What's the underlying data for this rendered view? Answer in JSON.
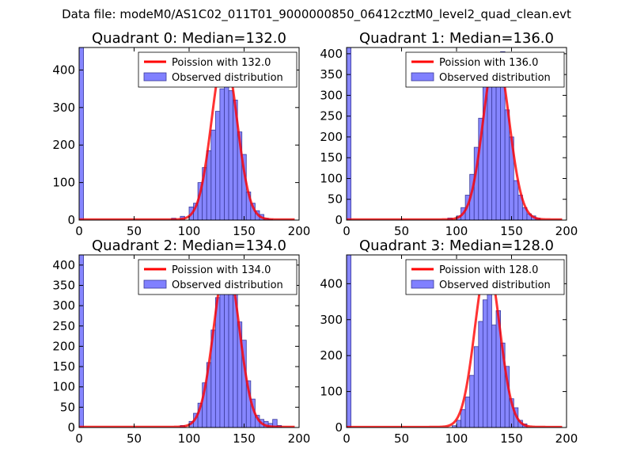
{
  "figure": {
    "suptitle": "Data file: modeM0/AS1C02_011T01_9000000850_06412cztM0_level2_quad_clean.evt"
  },
  "colors": {
    "hist_fill": "#8080ff",
    "hist_edge": "#3a3a9a",
    "fit_line": "#ff0000"
  },
  "chart_data": [
    {
      "type": "bar",
      "title": "Quadrant 0: Median=132.0",
      "legend": [
        "Poission with 132.0",
        "Observed distribution"
      ],
      "legend_position": "top-right",
      "xlim": [
        0,
        200
      ],
      "ylim": [
        0,
        460
      ],
      "xticks": [
        0,
        50,
        100,
        150,
        200
      ],
      "yticks": [
        0,
        100,
        200,
        300,
        400
      ],
      "bin_width": 4,
      "bin_starts": [
        0,
        84,
        92,
        100,
        104,
        108,
        112,
        116,
        120,
        124,
        128,
        132,
        136,
        140,
        144,
        148,
        152,
        156,
        160,
        164,
        168,
        172
      ],
      "counts": [
        460,
        5,
        10,
        35,
        45,
        100,
        140,
        185,
        240,
        290,
        350,
        415,
        345,
        320,
        235,
        175,
        75,
        45,
        25,
        15,
        5,
        2
      ],
      "poisson_mean": 132.0,
      "poisson_peak": 440
    },
    {
      "type": "bar",
      "title": "Quadrant 1: Median=136.0",
      "legend": [
        "Poission with 136.0",
        "Observed distribution"
      ],
      "legend_position": "top-right",
      "xlim": [
        0,
        200
      ],
      "ylim": [
        0,
        415
      ],
      "xticks": [
        0,
        50,
        100,
        150,
        200
      ],
      "yticks": [
        0,
        50,
        100,
        150,
        200,
        250,
        300,
        350,
        400
      ],
      "bin_width": 4,
      "bin_starts": [
        0,
        92,
        100,
        104,
        108,
        112,
        116,
        120,
        124,
        128,
        132,
        136,
        140,
        144,
        148,
        152,
        156,
        160,
        164,
        168,
        172
      ],
      "counts": [
        415,
        5,
        10,
        30,
        60,
        110,
        175,
        245,
        325,
        340,
        370,
        355,
        405,
        265,
        200,
        95,
        60,
        30,
        15,
        10,
        5
      ],
      "poisson_mean": 136.0,
      "poisson_peak": 400
    },
    {
      "type": "bar",
      "title": "Quadrant 2: Median=134.0",
      "legend": [
        "Poission with 134.0",
        "Observed distribution"
      ],
      "legend_position": "top-right",
      "xlim": [
        0,
        200
      ],
      "ylim": [
        0,
        425
      ],
      "xticks": [
        0,
        50,
        100,
        150,
        200
      ],
      "yticks": [
        0,
        50,
        100,
        150,
        200,
        250,
        300,
        350,
        400
      ],
      "bin_width": 4,
      "bin_starts": [
        0,
        92,
        100,
        104,
        108,
        112,
        116,
        120,
        124,
        128,
        132,
        136,
        140,
        144,
        148,
        152,
        156,
        160,
        164,
        168,
        172,
        176,
        180
      ],
      "counts": [
        425,
        5,
        15,
        35,
        60,
        110,
        160,
        240,
        320,
        365,
        340,
        360,
        395,
        260,
        215,
        115,
        70,
        30,
        20,
        15,
        10,
        20,
        5
      ],
      "poisson_mean": 134.0,
      "poisson_peak": 405
    },
    {
      "type": "bar",
      "title": "Quadrant 3: Median=128.0",
      "legend": [
        "Poission with 128.0",
        "Observed distribution"
      ],
      "legend_position": "top-right",
      "xlim": [
        0,
        200
      ],
      "ylim": [
        0,
        480
      ],
      "xticks": [
        0,
        50,
        100,
        150,
        200
      ],
      "yticks": [
        0,
        100,
        200,
        300,
        400
      ],
      "bin_width": 4,
      "bin_starts": [
        0,
        96,
        100,
        104,
        108,
        112,
        116,
        120,
        124,
        128,
        132,
        136,
        140,
        144,
        148,
        152,
        156,
        160
      ],
      "counts": [
        480,
        5,
        20,
        50,
        85,
        145,
        225,
        295,
        355,
        455,
        285,
        325,
        235,
        170,
        80,
        55,
        20,
        10
      ],
      "poisson_mean": 128.0,
      "poisson_peak": 455
    }
  ]
}
